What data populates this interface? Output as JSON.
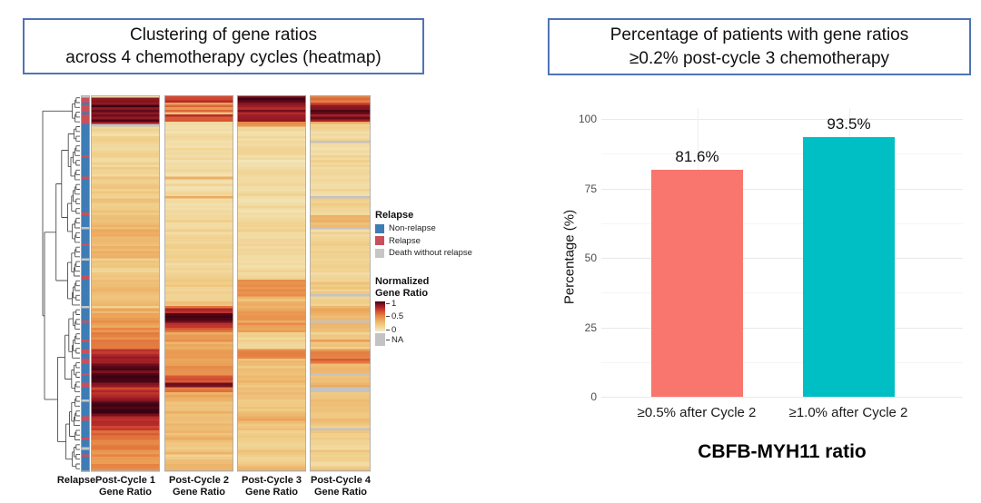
{
  "chart_data": [
    {
      "type": "heatmap",
      "title_lines": [
        "Clustering of gene ratios",
        "across 4 chemotherapy cycles (heatmap)"
      ],
      "row_annotation_label": "Relapse",
      "columns": [
        {
          "line1": "Post-Cycle 1",
          "line2": "Gene Ratio"
        },
        {
          "line1": "Post-Cycle 2",
          "line2": "Gene Ratio"
        },
        {
          "line1": "Post-Cycle 3",
          "line2": "Gene Ratio"
        },
        {
          "line1": "Post-Cycle 4",
          "line2": "Gene Ratio"
        }
      ],
      "legend": {
        "relapse": {
          "title": "Relapse",
          "items": [
            {
              "label": "Non-relapse",
              "color": "#3E7CB5"
            },
            {
              "label": "Relapse",
              "color": "#C9505B"
            },
            {
              "label": "Death without relapse",
              "color": "#C6C6C6"
            }
          ]
        },
        "scale": {
          "title_line1": "Normalized",
          "title_line2": "Gene Ratio",
          "ticks": [
            "1",
            "0.5",
            "0"
          ],
          "na_label": "NA",
          "na_color": "#C3C3C3",
          "stops": [
            [
              0,
              "#F4EBC3"
            ],
            [
              0.2,
              "#F0CD87"
            ],
            [
              0.4,
              "#EBA55A"
            ],
            [
              0.55,
              "#E37A3F"
            ],
            [
              0.7,
              "#D04430"
            ],
            [
              0.82,
              "#A62027"
            ],
            [
              0.92,
              "#740F1D"
            ],
            [
              1,
              "#3B0212"
            ]
          ]
        }
      },
      "n_rows": 157,
      "bands_format": "[n_rows, relapse(B=non-relapse,R=relapse,G=death-without-relapse), postC1, postC2, postC3, postC4, jitter?] — 'N' = NA (gray)",
      "bands": [
        [
          1,
          "G",
          0.15,
          0.62,
          0.85,
          0.5
        ],
        [
          2,
          "R",
          0.92,
          0.75,
          0.95,
          0.55
        ],
        [
          1,
          "B",
          0.88,
          0.45,
          0.9,
          0.7
        ],
        [
          3,
          "R",
          0.95,
          0.55,
          0.85,
          0.9,
          0.12
        ],
        [
          1,
          "B",
          0.9,
          0.3,
          0.75,
          0.95
        ],
        [
          3,
          "R",
          0.93,
          0.7,
          0.9,
          0.85,
          0.1
        ],
        [
          1,
          "R",
          0.85,
          0.15,
          0.5,
          0.3
        ],
        [
          1,
          "B",
          "N",
          0.12,
          0.45,
          0.12
        ],
        [
          6,
          "B",
          0.14,
          0.1,
          0.1,
          0.12
        ],
        [
          1,
          "B",
          0.15,
          0.1,
          0.1,
          "N"
        ],
        [
          5,
          "B",
          0.16,
          0.1,
          0.1,
          0.12
        ],
        [
          1,
          "R",
          0.2,
          0.12,
          0.1,
          0.12
        ],
        [
          8,
          "B",
          0.17,
          0.12,
          0.1,
          0.13
        ],
        [
          1,
          "R",
          0.2,
          0.3,
          0.12,
          0.15
        ],
        [
          7,
          "B",
          0.2,
          0.12,
          0.12,
          0.12
        ],
        [
          1,
          "B",
          0.2,
          0.35,
          0.15,
          "N"
        ],
        [
          6,
          "B",
          0.22,
          0.13,
          0.1,
          0.15
        ],
        [
          1,
          "R",
          0.25,
          0.15,
          0.12,
          0.12
        ],
        [
          5,
          "B",
          0.3,
          0.15,
          0.12,
          0.3
        ],
        [
          1,
          "G",
          0.3,
          0.12,
          0.12,
          "N"
        ],
        [
          6,
          "B",
          0.35,
          0.15,
          0.14,
          0.15
        ],
        [
          1,
          "R",
          0.3,
          0.2,
          0.15,
          0.15
        ],
        [
          5,
          "B",
          0.33,
          0.18,
          0.15,
          0.18
        ],
        [
          1,
          "G",
          0.2,
          0.15,
          0.12,
          0.15
        ],
        [
          6,
          "B",
          0.2,
          0.14,
          0.12,
          0.14
        ],
        [
          2,
          "R",
          0.25,
          0.18,
          0.15,
          0.15
        ],
        [
          6,
          "B",
          0.28,
          0.2,
          0.45,
          0.2
        ],
        [
          1,
          "B",
          0.3,
          0.2,
          0.45,
          "N"
        ],
        [
          4,
          "B",
          0.3,
          0.22,
          0.3,
          0.2
        ],
        [
          1,
          "G",
          0.15,
          0.55,
          0.35,
          0.3
        ],
        [
          2,
          "B",
          0.35,
          0.75,
          0.4,
          0.35
        ],
        [
          3,
          "B",
          0.4,
          1.0,
          0.45,
          0.3,
          0.04
        ],
        [
          1,
          "R",
          0.45,
          0.95,
          0.4,
          "N"
        ],
        [
          2,
          "B",
          0.4,
          0.8,
          0.45,
          0.35
        ],
        [
          2,
          "B",
          0.45,
          0.6,
          0.4,
          0.3
        ],
        [
          3,
          "B",
          0.5,
          0.4,
          0.18,
          0.18
        ],
        [
          1,
          "R",
          0.55,
          0.45,
          0.2,
          0.45
        ],
        [
          3,
          "B",
          0.5,
          0.35,
          0.15,
          0.2
        ],
        [
          2,
          "R",
          0.75,
          0.4,
          0.5,
          0.5
        ],
        [
          2,
          "B",
          0.8,
          0.45,
          0.5,
          0.55
        ],
        [
          2,
          "R",
          0.85,
          0.4,
          0.3,
          0.6
        ],
        [
          4,
          "B",
          0.95,
          0.45,
          0.25,
          0.3,
          0.05
        ],
        [
          1,
          "R",
          0.95,
          0.5,
          0.25,
          "N"
        ],
        [
          3,
          "B",
          1.0,
          0.65,
          0.3,
          0.25,
          0.03
        ],
        [
          2,
          "R",
          0.9,
          0.9,
          0.25,
          0.35
        ],
        [
          2,
          "B",
          0.75,
          0.55,
          0.3,
          "N"
        ],
        [
          3,
          "B",
          0.8,
          0.35,
          0.28,
          0.25
        ],
        [
          1,
          "G",
          0.95,
          0.3,
          0.25,
          0.25
        ],
        [
          4,
          "B",
          1.0,
          0.25,
          0.22,
          0.25,
          0.03
        ],
        [
          2,
          "B",
          0.95,
          0.3,
          0.3,
          0.2
        ],
        [
          2,
          "R",
          0.8,
          0.3,
          0.35,
          0.25
        ],
        [
          3,
          "B",
          0.75,
          0.28,
          0.25,
          0.22
        ],
        [
          1,
          "B",
          0.7,
          0.3,
          0.25,
          "N"
        ],
        [
          3,
          "B",
          0.6,
          0.3,
          0.22,
          0.2
        ],
        [
          1,
          "R",
          0.55,
          0.35,
          0.25,
          0.25
        ],
        [
          3,
          "B",
          0.55,
          0.25,
          0.2,
          0.18
        ],
        [
          1,
          "G",
          0.5,
          0.25,
          0.2,
          0.15
        ],
        [
          2,
          "B",
          0.5,
          0.3,
          0.25,
          0.2
        ],
        [
          1,
          "R",
          0.5,
          0.2,
          0.2,
          0.2
        ],
        [
          4,
          "B",
          0.48,
          0.28,
          0.22,
          0.18,
          0.08
        ],
        [
          2,
          "B",
          0.45,
          0.3,
          0.3,
          0.25
        ]
      ]
    },
    {
      "type": "bar",
      "title_lines": [
        "Percentage of patients with gene ratios",
        "≥0.2% post-cycle 3 chemotherapy"
      ],
      "categories": [
        "≥0.5% after Cycle 2",
        "≥1.0% after Cycle 2"
      ],
      "values": [
        81.6,
        93.5
      ],
      "value_labels": [
        "81.6%",
        "93.5%"
      ],
      "bar_colors": [
        "#F8766D",
        "#00BFC4"
      ],
      "ylabel": "Percentage (%)",
      "xlabel": "CBFB-MYH11 ratio",
      "yticks": [
        0,
        25,
        50,
        75,
        100
      ],
      "ylim": [
        0,
        100
      ],
      "grid": true,
      "legend_position": "none"
    }
  ],
  "accent_border_color": "#4F74B3"
}
